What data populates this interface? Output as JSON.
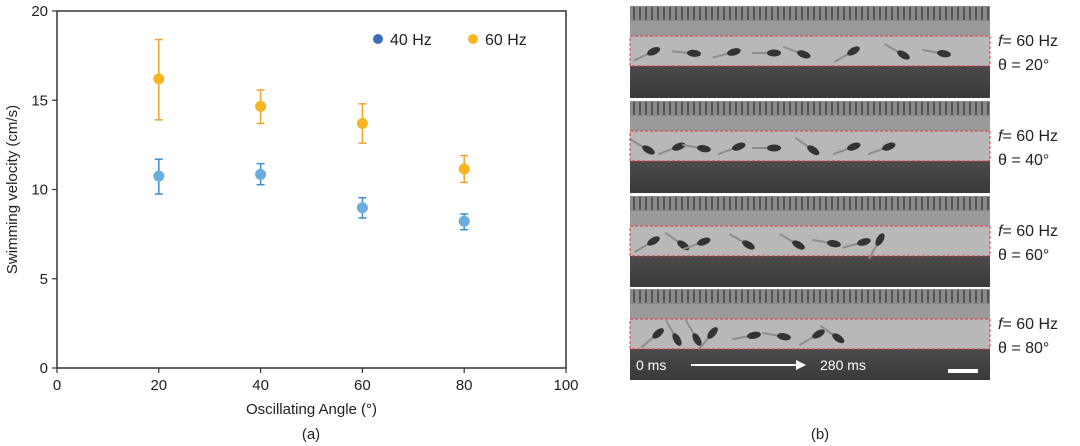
{
  "chart_data": {
    "type": "scatter",
    "panel_label": "(a)",
    "xlabel": "Oscillating Angle (°)",
    "ylabel": "Swimming velocity (cm/s)",
    "xlim": [
      0,
      100
    ],
    "ylim": [
      0,
      20
    ],
    "xticks": [
      0,
      20,
      40,
      60,
      80,
      100
    ],
    "yticks": [
      0,
      5,
      10,
      15,
      20
    ],
    "grid": false,
    "legend_placement": "top-right",
    "x": [
      20,
      40,
      60,
      80
    ],
    "series": [
      {
        "name": "40 Hz",
        "color": "#6aaee0",
        "legend_color": "#3e6db5",
        "errorbar_color": "#3a8fd0",
        "values": [
          10.75,
          10.85,
          8.98,
          8.22
        ],
        "error_low": [
          9.75,
          10.27,
          8.4,
          7.75
        ],
        "error_high": [
          11.7,
          11.45,
          9.54,
          8.63
        ]
      },
      {
        "name": "60 Hz",
        "color": "#f5b622",
        "legend_color": "#f5b622",
        "errorbar_color": "#f0a030",
        "values": [
          16.2,
          14.66,
          13.7,
          11.15
        ],
        "error_low": [
          13.9,
          13.7,
          12.6,
          10.4
        ],
        "error_high": [
          18.4,
          15.57,
          14.8,
          11.9
        ]
      }
    ]
  },
  "image_panel": {
    "panel_label": "(b)",
    "strips": [
      {
        "freq": "= 60 Hz",
        "freq_symbol": "f",
        "angle": "θ = 20°"
      },
      {
        "freq": "= 60 Hz",
        "freq_symbol": "f",
        "angle": "θ = 40°"
      },
      {
        "freq": "= 60 Hz",
        "freq_symbol": "f",
        "angle": "θ = 60°"
      },
      {
        "freq": "= 60 Hz",
        "freq_symbol": "f",
        "angle": "θ = 80°"
      }
    ],
    "time_start": "0 ms",
    "time_end": "280 ms",
    "highlight_color": "#e8323c"
  }
}
